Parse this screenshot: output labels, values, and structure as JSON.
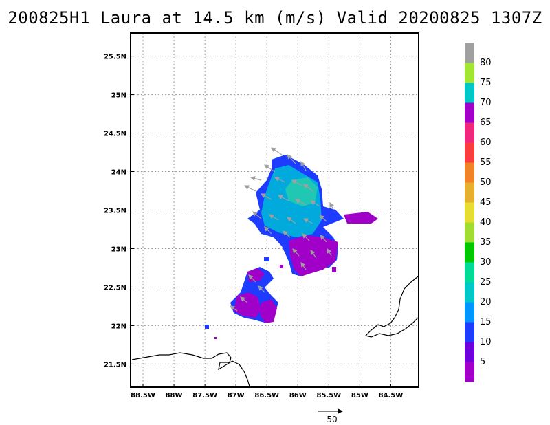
{
  "title": "200825H1 Laura at 14.5 km (m/s) Valid 20200825 1307Z",
  "map": {
    "lon_range": [
      -88.7,
      -84.05
    ],
    "lat_range": [
      21.2,
      25.8
    ],
    "lon_ticks": [
      -88.5,
      -88,
      -87.5,
      -87,
      -86.5,
      -86,
      -85.5,
      -85,
      -84.5
    ],
    "lon_labels": [
      "88.5W",
      "88W",
      "87.5W",
      "87W",
      "86.5W",
      "86W",
      "85.5W",
      "85W",
      "84.5W"
    ],
    "lat_ticks": [
      21.5,
      22,
      22.5,
      23,
      23.5,
      24,
      24.5,
      25,
      25.5
    ],
    "lat_labels": [
      "21.5N",
      "22N",
      "22.5N",
      "23N",
      "23.5N",
      "24N",
      "24.5N",
      "25N",
      "25.5N"
    ],
    "grid": "dotted",
    "coastlines": true
  },
  "colorbar": {
    "labels": [
      "5",
      "10",
      "15",
      "20",
      "25",
      "30",
      "35",
      "40",
      "45",
      "50",
      "55",
      "60",
      "65",
      "70",
      "75",
      "80"
    ],
    "colors": [
      "#a000c8",
      "#6e00dc",
      "#1e3cff",
      "#0096ff",
      "#00c8c8",
      "#00dc96",
      "#00c800",
      "#a0dc32",
      "#e6dc32",
      "#e6af2d",
      "#f08228",
      "#fa3c3c",
      "#f0287d",
      "#a000c8",
      "#00c8c8",
      "#a0e632",
      "#a0a0a0"
    ]
  },
  "vector_reference": {
    "label": "50",
    "value_ms": 50
  }
}
